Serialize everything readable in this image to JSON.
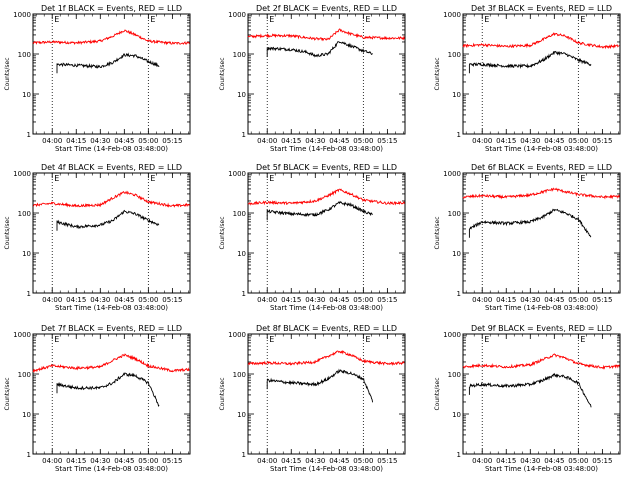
{
  "chart_data": [
    {
      "type": "line",
      "title": "Det 1f BLACK = Events, RED = LLD",
      "xlabel": "Start Time (14-Feb-08 03:48:00)",
      "ylabel": "Counts/sec",
      "y_scale": "log",
      "ylim": [
        1,
        1000
      ],
      "xlim": [
        "03:48",
        "05:26"
      ],
      "x_ticks": [
        "04:00",
        "04:15",
        "04:30",
        "04:45",
        "05:00",
        "05:15"
      ],
      "y_ticks": [
        "1",
        "10",
        "100",
        "1000"
      ],
      "markers": [
        {
          "time": "04:00",
          "label": "E"
        },
        {
          "time": "05:00",
          "label": "E"
        }
      ],
      "series": [
        {
          "color": "#ff0000",
          "x": [
            "03:48",
            "04:00",
            "04:15",
            "04:30",
            "04:38",
            "04:45",
            "04:52",
            "05:00",
            "05:15",
            "05:26"
          ],
          "y": [
            190,
            200,
            190,
            210,
            280,
            390,
            300,
            210,
            185,
            190
          ]
        },
        {
          "color": "#000000",
          "x": [
            "04:03",
            "04:15",
            "04:30",
            "04:38",
            "04:45",
            "04:52",
            "05:00",
            "05:07"
          ],
          "y": [
            55,
            52,
            48,
            62,
            95,
            90,
            65,
            50
          ]
        }
      ]
    },
    {
      "type": "line",
      "title": "Det 2f BLACK = Events, RED = LLD",
      "xlabel": "Start Time (14-Feb-08 03:48:00)",
      "ylabel": "Counts/sec",
      "y_scale": "log",
      "ylim": [
        1,
        1000
      ],
      "xlim": [
        "03:48",
        "05:26"
      ],
      "x_ticks": [
        "04:00",
        "04:15",
        "04:30",
        "04:45",
        "05:00",
        "05:15"
      ],
      "y_ticks": [
        "1",
        "10",
        "100",
        "1000"
      ],
      "markers": [
        {
          "time": "04:00",
          "label": "E"
        },
        {
          "time": "05:00",
          "label": "E"
        }
      ],
      "series": [
        {
          "color": "#ff0000",
          "x": [
            "03:48",
            "04:00",
            "04:15",
            "04:30",
            "04:38",
            "04:45",
            "04:52",
            "05:00",
            "05:15",
            "05:26"
          ],
          "y": [
            270,
            290,
            285,
            240,
            230,
            400,
            320,
            260,
            250,
            250
          ]
        },
        {
          "color": "#000000",
          "x": [
            "04:00",
            "04:15",
            "04:25",
            "04:30",
            "04:38",
            "04:45",
            "04:52",
            "05:00",
            "05:06"
          ],
          "y": [
            140,
            130,
            110,
            90,
            100,
            210,
            160,
            120,
            100
          ]
        }
      ]
    },
    {
      "type": "line",
      "title": "Det 3f BLACK = Events, RED = LLD",
      "xlabel": "Start Time (14-Feb-08 03:48:00)",
      "ylabel": "Counts/sec",
      "y_scale": "log",
      "ylim": [
        1,
        1000
      ],
      "xlim": [
        "03:48",
        "05:26"
      ],
      "x_ticks": [
        "04:00",
        "04:15",
        "04:30",
        "04:45",
        "05:00",
        "05:15"
      ],
      "y_ticks": [
        "1",
        "10",
        "100",
        "1000"
      ],
      "markers": [
        {
          "time": "04:00",
          "label": "E"
        },
        {
          "time": "05:00",
          "label": "E"
        }
      ],
      "series": [
        {
          "color": "#ff0000",
          "x": [
            "03:48",
            "04:00",
            "04:15",
            "04:30",
            "04:38",
            "04:45",
            "04:52",
            "05:00",
            "05:15",
            "05:26"
          ],
          "y": [
            160,
            170,
            155,
            165,
            230,
            320,
            280,
            190,
            150,
            160
          ]
        },
        {
          "color": "#000000",
          "x": [
            "03:52",
            "04:00",
            "04:15",
            "04:30",
            "04:38",
            "04:45",
            "04:52",
            "05:00",
            "05:08"
          ],
          "y": [
            55,
            55,
            50,
            50,
            70,
            110,
            100,
            70,
            55
          ]
        }
      ]
    },
    {
      "type": "line",
      "title": "Det 4f BLACK = Events, RED = LLD",
      "xlabel": "Start Time (14-Feb-08 03:48:00)",
      "ylabel": "Counts/sec",
      "y_scale": "log",
      "ylim": [
        1,
        1000
      ],
      "xlim": [
        "03:48",
        "05:26"
      ],
      "x_ticks": [
        "04:00",
        "04:15",
        "04:30",
        "04:45",
        "05:00",
        "05:15"
      ],
      "y_ticks": [
        "1",
        "10",
        "100",
        "1000"
      ],
      "markers": [
        {
          "time": "04:00",
          "label": "E"
        },
        {
          "time": "05:00",
          "label": "E"
        }
      ],
      "series": [
        {
          "color": "#ff0000",
          "x": [
            "03:48",
            "04:00",
            "04:15",
            "04:30",
            "04:38",
            "04:45",
            "04:52",
            "05:00",
            "05:15",
            "05:26"
          ],
          "y": [
            155,
            175,
            150,
            160,
            240,
            330,
            280,
            190,
            150,
            160
          ]
        },
        {
          "color": "#000000",
          "x": [
            "04:03",
            "04:15",
            "04:30",
            "04:38",
            "04:45",
            "04:52",
            "05:00",
            "05:07"
          ],
          "y": [
            60,
            45,
            50,
            65,
            110,
            95,
            65,
            50
          ]
        }
      ]
    },
    {
      "type": "line",
      "title": "Det 5f BLACK = Events, RED = LLD",
      "xlabel": "Start Time (14-Feb-08 03:48:00)",
      "ylabel": "Counts/sec",
      "y_scale": "log",
      "ylim": [
        1,
        1000
      ],
      "xlim": [
        "03:48",
        "05:26"
      ],
      "x_ticks": [
        "04:00",
        "04:15",
        "04:30",
        "04:45",
        "05:00",
        "05:15"
      ],
      "y_ticks": [
        "1",
        "10",
        "100",
        "1000"
      ],
      "markers": [
        {
          "time": "04:00",
          "label": "E"
        },
        {
          "time": "05:00",
          "label": "E"
        }
      ],
      "series": [
        {
          "color": "#ff0000",
          "x": [
            "03:48",
            "04:00",
            "04:15",
            "04:30",
            "04:38",
            "04:45",
            "04:52",
            "05:00",
            "05:15",
            "05:26"
          ],
          "y": [
            170,
            185,
            175,
            200,
            270,
            380,
            300,
            210,
            175,
            180
          ]
        },
        {
          "color": "#000000",
          "x": [
            "04:00",
            "04:15",
            "04:30",
            "04:38",
            "04:45",
            "04:52",
            "05:00",
            "05:06"
          ],
          "y": [
            110,
            95,
            90,
            120,
            180,
            160,
            110,
            90
          ]
        }
      ]
    },
    {
      "type": "line",
      "title": "Det 6f BLACK = Events, RED = LLD",
      "xlabel": "Start Time (14-Feb-08 03:48:00)",
      "ylabel": "Counts/sec",
      "y_scale": "log",
      "ylim": [
        1,
        1000
      ],
      "xlim": [
        "03:48",
        "05:26"
      ],
      "x_ticks": [
        "04:00",
        "04:15",
        "04:30",
        "04:45",
        "05:00",
        "05:15"
      ],
      "y_ticks": [
        "1",
        "10",
        "100",
        "1000"
      ],
      "markers": [
        {
          "time": "04:00",
          "label": "E"
        },
        {
          "time": "05:00",
          "label": "E"
        }
      ],
      "series": [
        {
          "color": "#ff0000",
          "x": [
            "03:48",
            "04:00",
            "04:15",
            "04:30",
            "04:38",
            "04:45",
            "04:52",
            "05:00",
            "05:15",
            "05:26"
          ],
          "y": [
            250,
            270,
            250,
            280,
            340,
            400,
            340,
            290,
            250,
            260
          ]
        },
        {
          "color": "#000000",
          "x": [
            "03:52",
            "04:00",
            "04:15",
            "04:30",
            "04:38",
            "04:45",
            "04:52",
            "05:00",
            "05:08"
          ],
          "y": [
            40,
            60,
            55,
            60,
            80,
            120,
            100,
            70,
            25
          ]
        }
      ]
    },
    {
      "type": "line",
      "title": "Det 7f BLACK = Events, RED = LLD",
      "xlabel": "Start Time (14-Feb-08 03:48:00)",
      "ylabel": "Counts/sec",
      "y_scale": "log",
      "ylim": [
        1,
        1000
      ],
      "xlim": [
        "03:48",
        "05:26"
      ],
      "x_ticks": [
        "04:00",
        "04:15",
        "04:30",
        "04:45",
        "05:00",
        "05:15"
      ],
      "y_ticks": [
        "1",
        "10",
        "100",
        "1000"
      ],
      "markers": [
        {
          "time": "04:00",
          "label": "E"
        },
        {
          "time": "05:00",
          "label": "E"
        }
      ],
      "series": [
        {
          "color": "#ff0000",
          "x": [
            "03:48",
            "04:00",
            "04:15",
            "04:30",
            "04:38",
            "04:45",
            "04:52",
            "05:00",
            "05:15",
            "05:26"
          ],
          "y": [
            120,
            160,
            140,
            150,
            220,
            300,
            240,
            160,
            120,
            130
          ]
        },
        {
          "color": "#000000",
          "x": [
            "04:03",
            "04:15",
            "04:30",
            "04:38",
            "04:45",
            "04:52",
            "05:00",
            "05:07"
          ],
          "y": [
            55,
            45,
            45,
            60,
            100,
            90,
            60,
            15
          ]
        }
      ]
    },
    {
      "type": "line",
      "title": "Det 8f BLACK = Events, RED = LLD",
      "xlabel": "Start Time (14-Feb-08 03:48:00)",
      "ylabel": "Counts/sec",
      "y_scale": "log",
      "ylim": [
        1,
        1000
      ],
      "xlim": [
        "03:48",
        "05:26"
      ],
      "x_ticks": [
        "04:00",
        "04:15",
        "04:30",
        "04:45",
        "05:00",
        "05:15"
      ],
      "y_ticks": [
        "1",
        "10",
        "100",
        "1000"
      ],
      "markers": [
        {
          "time": "04:00",
          "label": "E"
        },
        {
          "time": "05:00",
          "label": "E"
        }
      ],
      "series": [
        {
          "color": "#ff0000",
          "x": [
            "03:48",
            "04:00",
            "04:15",
            "04:30",
            "04:38",
            "04:45",
            "04:52",
            "05:00",
            "05:15",
            "05:26"
          ],
          "y": [
            180,
            190,
            180,
            200,
            280,
            370,
            300,
            210,
            180,
            190
          ]
        },
        {
          "color": "#000000",
          "x": [
            "04:00",
            "04:15",
            "04:30",
            "04:38",
            "04:45",
            "04:52",
            "05:00",
            "05:06"
          ],
          "y": [
            70,
            60,
            55,
            75,
            120,
            105,
            75,
            20
          ]
        }
      ]
    },
    {
      "type": "line",
      "title": "Det 9f BLACK = Events, RED = LLD",
      "xlabel": "Start Time (14-Feb-08 03:48:00)",
      "ylabel": "Counts/sec",
      "y_scale": "log",
      "ylim": [
        1,
        1000
      ],
      "xlim": [
        "03:48",
        "05:26"
      ],
      "x_ticks": [
        "04:00",
        "04:15",
        "04:30",
        "04:45",
        "05:00",
        "05:15"
      ],
      "y_ticks": [
        "1",
        "10",
        "100",
        "1000"
      ],
      "markers": [
        {
          "time": "04:00",
          "label": "E"
        },
        {
          "time": "05:00",
          "label": "E"
        }
      ],
      "series": [
        {
          "color": "#ff0000",
          "x": [
            "03:48",
            "04:00",
            "04:15",
            "04:30",
            "04:38",
            "04:45",
            "04:52",
            "05:00",
            "05:15",
            "05:26"
          ],
          "y": [
            150,
            165,
            150,
            170,
            230,
            300,
            250,
            180,
            145,
            160
          ]
        },
        {
          "color": "#000000",
          "x": [
            "03:52",
            "04:00",
            "04:15",
            "04:30",
            "04:38",
            "04:45",
            "04:52",
            "05:00",
            "05:08"
          ],
          "y": [
            50,
            55,
            50,
            55,
            70,
            95,
            85,
            60,
            15
          ]
        }
      ]
    }
  ]
}
